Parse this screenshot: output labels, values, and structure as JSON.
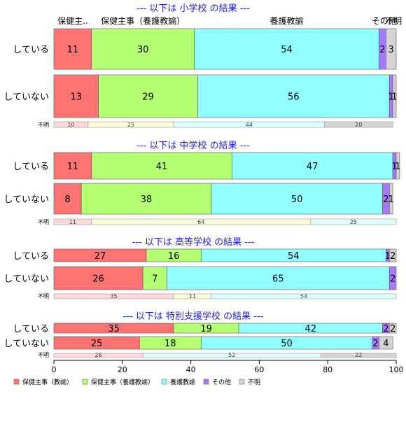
{
  "chart_data": {
    "type": "bar",
    "orientation": "horizontal",
    "stacked": true,
    "xlim": [
      0,
      100
    ],
    "xticks": [
      "0",
      "20",
      "40",
      "60",
      "80",
      "100"
    ],
    "categories": [
      "保健主事（教諭）",
      "保健主事（養護教諭）",
      "養護教諭",
      "その他",
      "不明"
    ],
    "top_labels": [
      "保健主..",
      "保健主事（養護教諭）",
      "養護教諭",
      "その他",
      "不明"
    ],
    "colors": {
      "保健主事（教諭）": "#ff7373",
      "保健主事（養護教諭）": "#b5ff73",
      "養護教諭": "#91ffff",
      "その他": "#a879ff",
      "不明": "#d4d4d4"
    },
    "light_colors": {
      "保健主事（教諭）": "#ffd9d9",
      "保健主事（養護教諭）": "#fdfdd8",
      "養護教諭": "#dcffff",
      "その他": "#e6dcff",
      "不明": "#d4d4d4"
    },
    "groups": [
      {
        "title": "--- 以下は 小学校 の結果 ---",
        "rows": [
          {
            "label": "している",
            "values": [
              11,
              30,
              54,
              2,
              3
            ],
            "labels": [
              "11",
              "30",
              "54",
              "2",
              "3"
            ]
          },
          {
            "label": "していない",
            "values": [
              13,
              29,
              56,
              1,
              1
            ],
            "labels": [
              "13",
              "29",
              "56",
              "1",
              "1"
            ]
          }
        ],
        "unknown": {
          "label": "不明",
          "values": [
            10,
            25,
            44,
            0,
            20
          ],
          "labels": [
            "10",
            "25",
            "44",
            "",
            "20"
          ]
        }
      },
      {
        "title": "--- 以下は 中学校 の結果 ---",
        "rows": [
          {
            "label": "している",
            "values": [
              11,
              41,
              47,
              1,
              1
            ],
            "labels": [
              "11",
              "41",
              "47",
              "1",
              "1"
            ]
          },
          {
            "label": "していない",
            "values": [
              8,
              38,
              50,
              2,
              1
            ],
            "labels": [
              "8",
              "38",
              "50",
              "2",
              "1"
            ]
          }
        ],
        "unknown": {
          "label": "不明",
          "values": [
            11,
            64,
            25,
            0,
            0
          ],
          "labels": [
            "11",
            "64",
            "25",
            "",
            ""
          ]
        }
      },
      {
        "title": "--- 以下は 高等学校 の結果 ---",
        "rows": [
          {
            "label": "している",
            "values": [
              27,
              16,
              54,
              1,
              2
            ],
            "labels": [
              "27",
              "16",
              "54",
              "1",
              "2"
            ]
          },
          {
            "label": "していない",
            "values": [
              26,
              7,
              65,
              2,
              0
            ],
            "labels": [
              "26",
              "7",
              "65",
              "2",
              ""
            ]
          }
        ],
        "unknown": {
          "label": "不明",
          "values": [
            35,
            11,
            54,
            0,
            0
          ],
          "labels": [
            "35",
            "11",
            "54",
            "",
            ""
          ]
        }
      },
      {
        "title": "--- 以下は 特別支援学校 の結果 ---",
        "rows": [
          {
            "label": "している",
            "values": [
              35,
              19,
              42,
              2,
              2
            ],
            "labels": [
              "35",
              "19",
              "42",
              "2",
              "2"
            ]
          },
          {
            "label": "していない",
            "values": [
              25,
              18,
              50,
              2,
              4
            ],
            "labels": [
              "25",
              "18",
              "50",
              "2",
              "4"
            ]
          }
        ],
        "unknown": {
          "label": "不明",
          "values": [
            26,
            0,
            52,
            0,
            22
          ],
          "labels": [
            "26",
            "",
            "52",
            "",
            "22"
          ]
        }
      }
    ],
    "legend_position": "bottom-left",
    "grid": false
  }
}
